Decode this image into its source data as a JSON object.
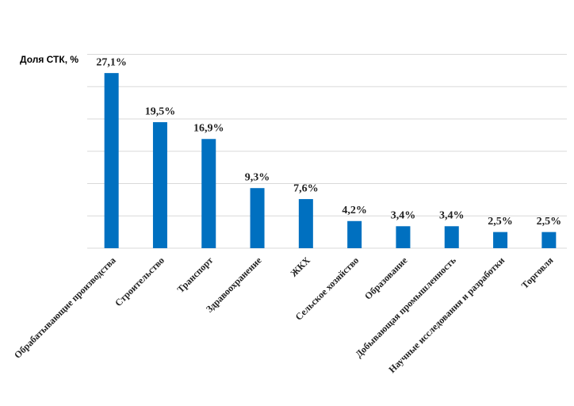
{
  "chart_data": {
    "type": "bar",
    "y_label": "Доля СТК, %",
    "categories": [
      "Обрабатывающие производства",
      "Строительство",
      "Транспорт",
      "Здравоохранение",
      "ЖКХ",
      "Сельское хозяйство",
      "Образование",
      "Добывающая промышленность",
      "Научные исследования и разработки",
      "Торговля"
    ],
    "values": [
      27.1,
      19.5,
      16.9,
      9.3,
      7.6,
      4.2,
      3.4,
      3.4,
      2.5,
      2.5
    ],
    "value_labels": [
      "27,1%",
      "19,5%",
      "16,9%",
      "9,3%",
      "7,6%",
      "4,2%",
      "3,4%",
      "3,4%",
      "2,5%",
      "2,5%"
    ],
    "color": "#0070c0",
    "ylim": [
      0,
      30
    ],
    "yticks": [
      0,
      5,
      10,
      15,
      20,
      25,
      30
    ],
    "grid": true
  }
}
